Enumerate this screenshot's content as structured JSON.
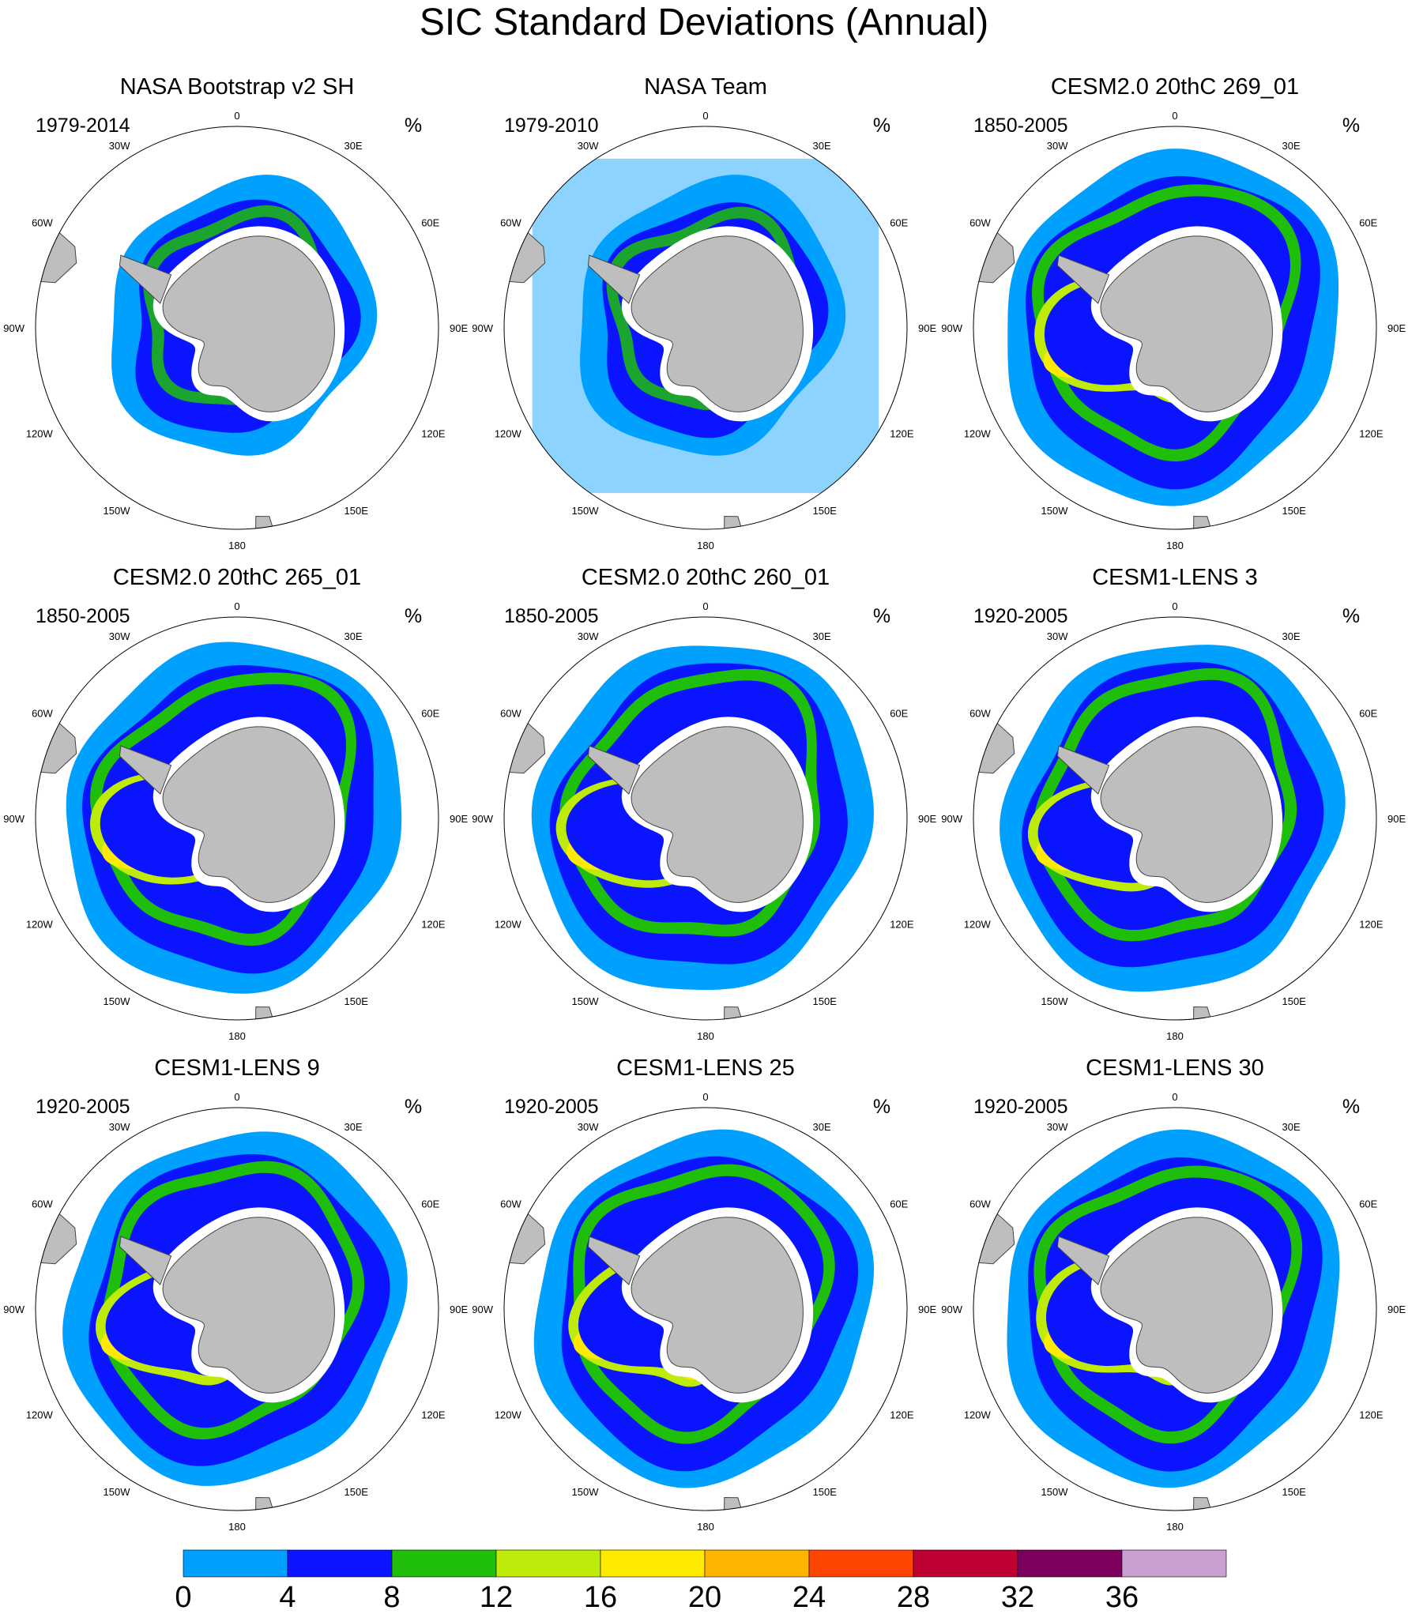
{
  "chart_data": {
    "type": "heatmap",
    "projection": "south-polar-stereographic",
    "title": "SIC Standard Deviations (Annual)",
    "units": "%",
    "panels": [
      {
        "title": "NASA Bootstrap v2 SH",
        "period": "1979-2014",
        "units": "%"
      },
      {
        "title": "NASA Team",
        "period": "1979-2010",
        "units": "%"
      },
      {
        "title": "CESM2.0 20thC 269_01",
        "period": "1850-2005",
        "units": "%"
      },
      {
        "title": "CESM2.0 20thC 265_01",
        "period": "1850-2005",
        "units": "%"
      },
      {
        "title": "CESM2.0 20thC 260_01",
        "period": "1850-2005",
        "units": "%"
      },
      {
        "title": "CESM1-LENS 3",
        "period": "1920-2005",
        "units": "%"
      },
      {
        "title": "CESM1-LENS 9",
        "period": "1920-2005",
        "units": "%"
      },
      {
        "title": "CESM1-LENS 25",
        "period": "1920-2005",
        "units": "%"
      },
      {
        "title": "CESM1-LENS 30",
        "period": "1920-2005",
        "units": "%"
      }
    ],
    "longitude_labels": [
      "0",
      "30E",
      "60E",
      "90E",
      "120E",
      "150E",
      "180",
      "150W",
      "120W",
      "90W",
      "60W",
      "30W"
    ],
    "colorbar": {
      "ticks": [
        "0",
        "4",
        "8",
        "12",
        "16",
        "20",
        "24",
        "28",
        "32",
        "36"
      ],
      "colors": [
        "#00a0ff",
        "#0a14ff",
        "#1ebe0a",
        "#beeb0a",
        "#ffeb00",
        "#ffb400",
        "#ff4600",
        "#be0032",
        "#7d005f",
        "#c8a0d2"
      ]
    },
    "land_color": "#bebebe"
  }
}
